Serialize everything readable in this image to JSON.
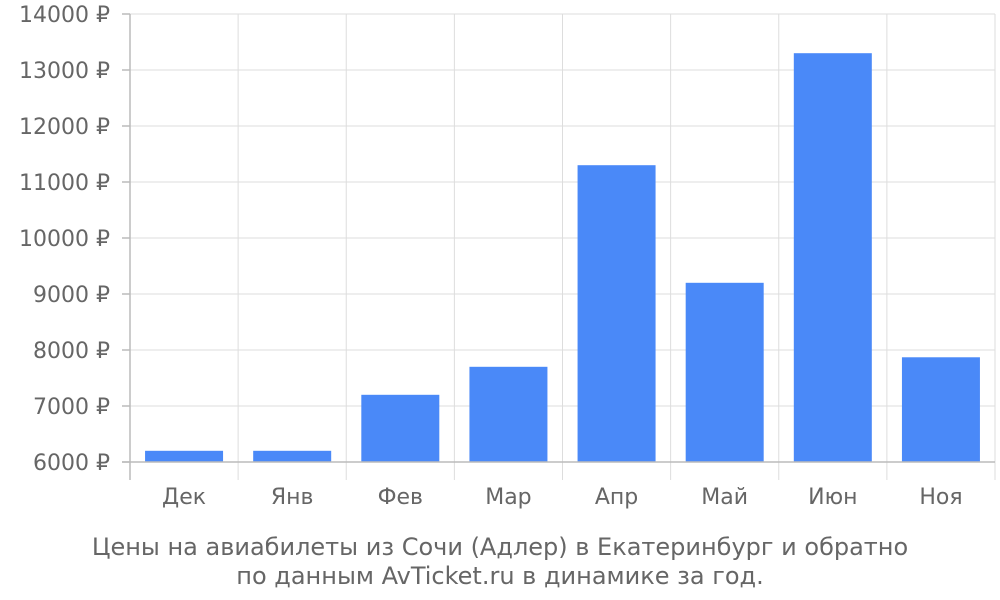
{
  "chart_data": {
    "type": "bar",
    "categories": [
      "Дек",
      "Янв",
      "Фев",
      "Мар",
      "Апр",
      "Май",
      "Июн",
      "Ноя"
    ],
    "values": [
      6200,
      6200,
      7200,
      7700,
      11300,
      9200,
      13300,
      7870
    ],
    "ylim": [
      6000,
      14000
    ],
    "yticks": [
      6000,
      7000,
      8000,
      9000,
      10000,
      11000,
      12000,
      13000,
      14000
    ],
    "tick_suffix": " ₽",
    "bar_color": "#4a89f8",
    "grid": true,
    "caption_lines": [
      "Цены на авиабилеты из Сочи (Адлер) в Екатеринбург и обратно",
      "по данным AvTicket.ru в динамике за год."
    ]
  }
}
